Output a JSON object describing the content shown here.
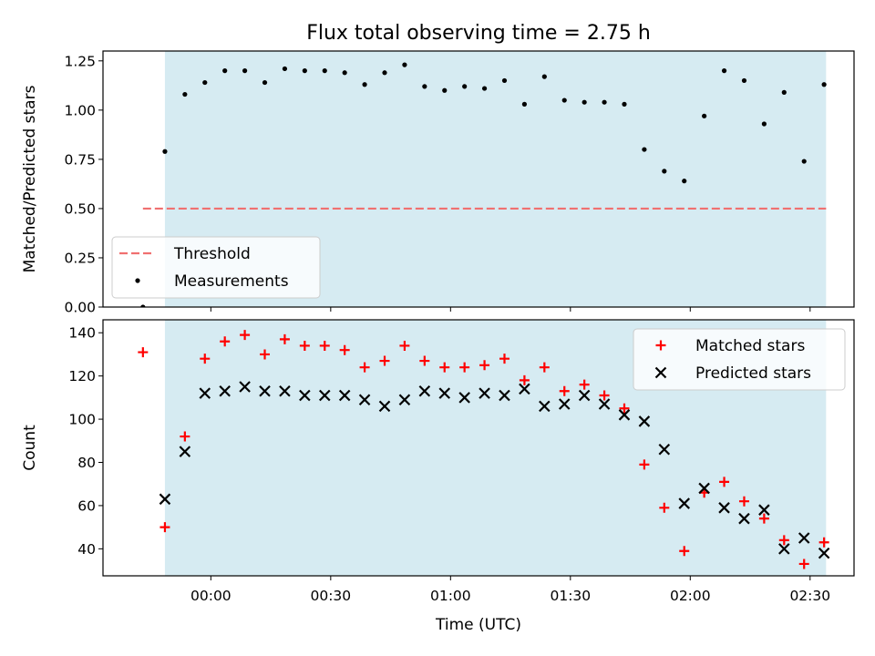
{
  "figure": {
    "title": "Flux total observing time = 2.75 h",
    "xlabel": "Time (UTC)"
  },
  "colors": {
    "shade": "#add8e6",
    "threshold": "#f07070",
    "measurement": "#000000",
    "matched": "#ff0000",
    "predicted": "#000000"
  },
  "chart_data": [
    {
      "type": "scatter",
      "ylabel": "Matched/Predicted stars",
      "x_unit": "minutes after 00:00 UTC",
      "xlim": [
        -27,
        161
      ],
      "ylim": [
        0,
        1.3
      ],
      "yticks": [
        0.0,
        0.25,
        0.5,
        0.75,
        1.0,
        1.25
      ],
      "ytick_labels": [
        "0.00",
        "0.25",
        "0.50",
        "0.75",
        "1.00",
        "1.25"
      ],
      "shaded_span": [
        -11.5,
        154
      ],
      "legend": {
        "position": "lower-left",
        "entries": [
          "Threshold",
          "Measurements"
        ]
      },
      "threshold": {
        "name": "Threshold",
        "y": 0.5,
        "x_range": [
          -17,
          154
        ],
        "style": "dashed"
      },
      "series": [
        {
          "name": "Measurements",
          "marker": "dot",
          "points": [
            [
              -17,
              0.0
            ],
            [
              -11.5,
              0.79
            ],
            [
              -6.5,
              1.08
            ],
            [
              -1.5,
              1.14
            ],
            [
              3.5,
              1.2
            ],
            [
              8.5,
              1.2
            ],
            [
              13.5,
              1.14
            ],
            [
              18.5,
              1.21
            ],
            [
              23.5,
              1.2
            ],
            [
              28.5,
              1.2
            ],
            [
              33.5,
              1.19
            ],
            [
              38.5,
              1.13
            ],
            [
              43.5,
              1.19
            ],
            [
              48.5,
              1.23
            ],
            [
              53.5,
              1.12
            ],
            [
              58.5,
              1.1
            ],
            [
              63.5,
              1.12
            ],
            [
              68.5,
              1.11
            ],
            [
              73.5,
              1.15
            ],
            [
              78.5,
              1.03
            ],
            [
              83.5,
              1.17
            ],
            [
              88.5,
              1.05
            ],
            [
              93.5,
              1.04
            ],
            [
              98.5,
              1.04
            ],
            [
              103.5,
              1.03
            ],
            [
              108.5,
              0.8
            ],
            [
              113.5,
              0.69
            ],
            [
              118.5,
              0.64
            ],
            [
              123.5,
              0.97
            ],
            [
              128.5,
              1.2
            ],
            [
              133.5,
              1.15
            ],
            [
              138.5,
              0.93
            ],
            [
              143.5,
              1.09
            ],
            [
              148.5,
              0.74
            ],
            [
              153.5,
              1.13
            ]
          ]
        }
      ]
    },
    {
      "type": "scatter",
      "ylabel": "Count",
      "x_unit": "minutes after 00:00 UTC",
      "xlim": [
        -27,
        161
      ],
      "ylim": [
        27.5,
        146
      ],
      "yticks": [
        40,
        60,
        80,
        100,
        120,
        140
      ],
      "ytick_labels": [
        "40",
        "60",
        "80",
        "100",
        "120",
        "140"
      ],
      "xticks": [
        0,
        30,
        60,
        90,
        120,
        150
      ],
      "xtick_labels": [
        "00:00",
        "00:30",
        "01:00",
        "01:30",
        "02:00",
        "02:30"
      ],
      "shaded_span": [
        -11.5,
        154
      ],
      "legend": {
        "position": "upper-right",
        "entries": [
          "Matched stars",
          "Predicted stars"
        ]
      },
      "series": [
        {
          "name": "Matched stars",
          "marker": "plus",
          "points": [
            [
              -17,
              131
            ],
            [
              -11.5,
              50
            ],
            [
              -6.5,
              92
            ],
            [
              -1.5,
              128
            ],
            [
              3.5,
              136
            ],
            [
              8.5,
              139
            ],
            [
              13.5,
              130
            ],
            [
              18.5,
              137
            ],
            [
              23.5,
              134
            ],
            [
              28.5,
              134
            ],
            [
              33.5,
              132
            ],
            [
              38.5,
              124
            ],
            [
              43.5,
              127
            ],
            [
              48.5,
              134
            ],
            [
              53.5,
              127
            ],
            [
              58.5,
              124
            ],
            [
              63.5,
              124
            ],
            [
              68.5,
              125
            ],
            [
              73.5,
              128
            ],
            [
              78.5,
              118
            ],
            [
              83.5,
              124
            ],
            [
              88.5,
              113
            ],
            [
              93.5,
              116
            ],
            [
              98.5,
              111
            ],
            [
              103.5,
              105
            ],
            [
              108.5,
              79
            ],
            [
              113.5,
              59
            ],
            [
              118.5,
              39
            ],
            [
              123.5,
              66
            ],
            [
              128.5,
              71
            ],
            [
              133.5,
              62
            ],
            [
              138.5,
              54
            ],
            [
              143.5,
              44
            ],
            [
              148.5,
              33
            ],
            [
              153.5,
              43
            ]
          ]
        },
        {
          "name": "Predicted stars",
          "marker": "x",
          "points": [
            [
              -11.5,
              63
            ],
            [
              -6.5,
              85
            ],
            [
              -1.5,
              112
            ],
            [
              3.5,
              113
            ],
            [
              8.5,
              115
            ],
            [
              13.5,
              113
            ],
            [
              18.5,
              113
            ],
            [
              23.5,
              111
            ],
            [
              28.5,
              111
            ],
            [
              33.5,
              111
            ],
            [
              38.5,
              109
            ],
            [
              43.5,
              106
            ],
            [
              48.5,
              109
            ],
            [
              53.5,
              113
            ],
            [
              58.5,
              112
            ],
            [
              63.5,
              110
            ],
            [
              68.5,
              112
            ],
            [
              73.5,
              111
            ],
            [
              78.5,
              114
            ],
            [
              83.5,
              106
            ],
            [
              88.5,
              107
            ],
            [
              93.5,
              111
            ],
            [
              98.5,
              107
            ],
            [
              103.5,
              102
            ],
            [
              108.5,
              99
            ],
            [
              113.5,
              86
            ],
            [
              118.5,
              61
            ],
            [
              123.5,
              68
            ],
            [
              128.5,
              59
            ],
            [
              133.5,
              54
            ],
            [
              138.5,
              58
            ],
            [
              143.5,
              40
            ],
            [
              148.5,
              45
            ],
            [
              153.5,
              38
            ]
          ]
        }
      ]
    }
  ]
}
